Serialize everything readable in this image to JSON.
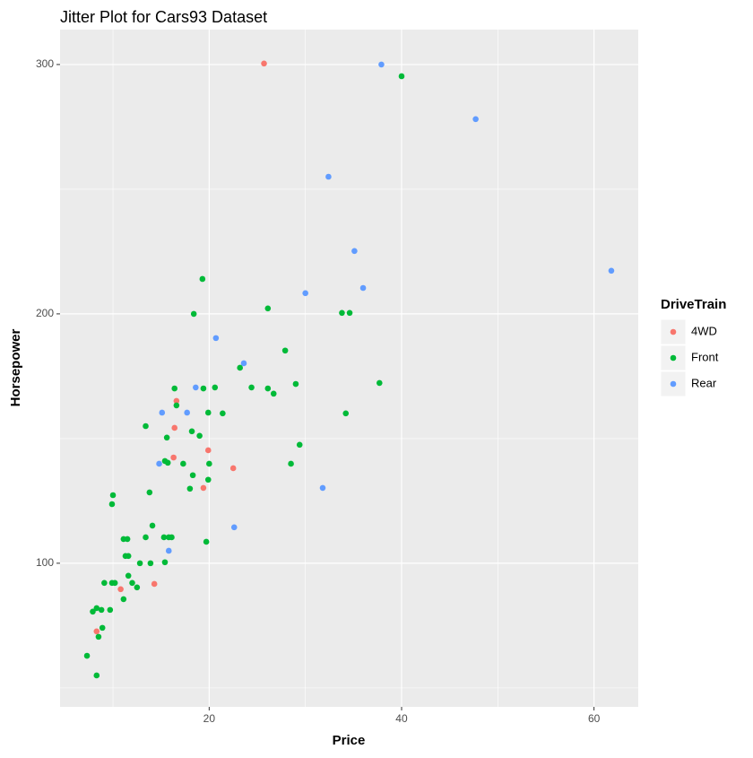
{
  "chart_data": {
    "type": "scatter",
    "title": "Jitter Plot for Cars93 Dataset",
    "x_label": "Price",
    "y_label": "Horsepower",
    "legend_title": "DriveTrain",
    "legend_position": "right",
    "xlim": [
      4.5,
      64.6
    ],
    "ylim": [
      42.4,
      314
    ],
    "xticks": [
      20,
      40,
      60
    ],
    "yticks": [
      100,
      200,
      300
    ],
    "x_minor_grid": [
      10,
      30,
      50
    ],
    "y_minor_grid": [
      50,
      150,
      250
    ],
    "grid": true,
    "series": [
      {
        "name": "4WD",
        "color": "#F8766D",
        "x": [
          25.7,
          16.6,
          16.4,
          19.9,
          16.3,
          19.4,
          22.5,
          14.3,
          10.8,
          8.3
        ],
        "values": [
          300.4,
          165.1,
          154.3,
          145.3,
          142.4,
          130.2,
          138.1,
          91.7,
          89.6,
          72.7
        ]
      },
      {
        "name": "Front",
        "color": "#00BA38",
        "x": [
          40.0,
          19.3,
          26.1,
          18.4,
          33.8,
          34.6,
          27.9,
          23.2,
          29.0,
          37.7,
          16.4,
          19.4,
          20.6,
          24.4,
          26.1,
          26.7,
          16.6,
          34.2,
          21.4,
          19.9,
          13.4,
          18.2,
          15.6,
          19.0,
          29.4,
          15.4,
          15.7,
          20.0,
          17.3,
          28.5,
          18.3,
          19.9,
          18.0,
          10.0,
          9.9,
          13.8,
          14.1,
          13.4,
          11.1,
          11.5,
          15.3,
          15.8,
          16.1,
          19.7,
          11.3,
          11.6,
          13.9,
          12.8,
          15.4,
          11.6,
          12.0,
          12.5,
          9.1,
          9.9,
          10.2,
          11.1,
          9.7,
          8.8,
          7.9,
          8.3,
          8.9,
          8.5,
          7.3,
          8.3
        ],
        "values": [
          295.3,
          214.0,
          202.2,
          200,
          200.4,
          200.4,
          185.3,
          178.4,
          171.9,
          172.3,
          170.1,
          170.1,
          170.5,
          170.5,
          170.1,
          168.0,
          163.3,
          160.1,
          160.1,
          160.4,
          155.0,
          152.9,
          150.4,
          151.1,
          147.5,
          141.0,
          140.3,
          139.9,
          139.9,
          139.9,
          135.3,
          133.5,
          129.9,
          127.3,
          123.7,
          128.4,
          115.1,
          110.4,
          109.7,
          109.7,
          110.4,
          110.4,
          110.4,
          108.6,
          102.9,
          102.9,
          100,
          100,
          100.4,
          95.0,
          92.1,
          90.3,
          92.1,
          92.1,
          92.1,
          85.6,
          81.3,
          81.3,
          80.6,
          82.0,
          74.1,
          70.5,
          62.9,
          55.0
        ]
      },
      {
        "name": "Rear",
        "color": "#619CFF",
        "x": [
          37.9,
          47.7,
          32.4,
          35.1,
          61.8,
          30.0,
          36.0,
          20.7,
          23.6,
          18.6,
          15.1,
          17.7,
          14.8,
          31.8,
          15.8,
          22.6
        ],
        "values": [
          300,
          278.1,
          255.0,
          225.2,
          217.3,
          208.3,
          210.4,
          190.3,
          180.2,
          170.5,
          160.4,
          160.4,
          139.9,
          130.2,
          105.0,
          114.4
        ]
      }
    ]
  }
}
